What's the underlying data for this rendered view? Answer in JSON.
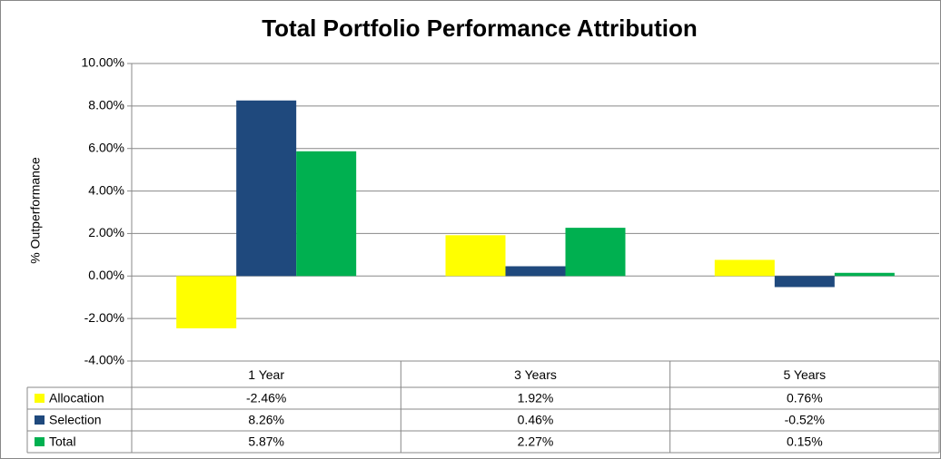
{
  "chart_data": {
    "type": "bar",
    "title": "Total Portfolio Performance Attribution",
    "y_label": "% Outperformance",
    "categories": [
      "1 Year",
      "3 Years",
      "5 Years"
    ],
    "series": [
      {
        "name": "Allocation",
        "color": "#ffff00",
        "values": [
          -2.46,
          1.92,
          0.76
        ],
        "value_labels": [
          "-2.46%",
          "1.92%",
          "0.76%"
        ]
      },
      {
        "name": "Selection",
        "color": "#1f497d",
        "values": [
          8.26,
          0.46,
          -0.52
        ],
        "value_labels": [
          "8.26%",
          "0.46%",
          "-0.52%"
        ]
      },
      {
        "name": "Total",
        "color": "#00b050",
        "values": [
          5.87,
          2.27,
          0.15
        ],
        "value_labels": [
          "5.87%",
          "2.27%",
          "0.15%"
        ]
      }
    ],
    "ylim": [
      -4,
      10
    ],
    "yticks": [
      {
        "value": -4,
        "label": "-4.00%"
      },
      {
        "value": -2,
        "label": "-2.00%"
      },
      {
        "value": 0,
        "label": "0.00%"
      },
      {
        "value": 2,
        "label": "2.00%"
      },
      {
        "value": 4,
        "label": "4.00%"
      },
      {
        "value": 6,
        "label": "6.00%"
      },
      {
        "value": 8,
        "label": "8.00%"
      },
      {
        "value": 10,
        "label": "10.00%"
      }
    ],
    "grid": true
  }
}
